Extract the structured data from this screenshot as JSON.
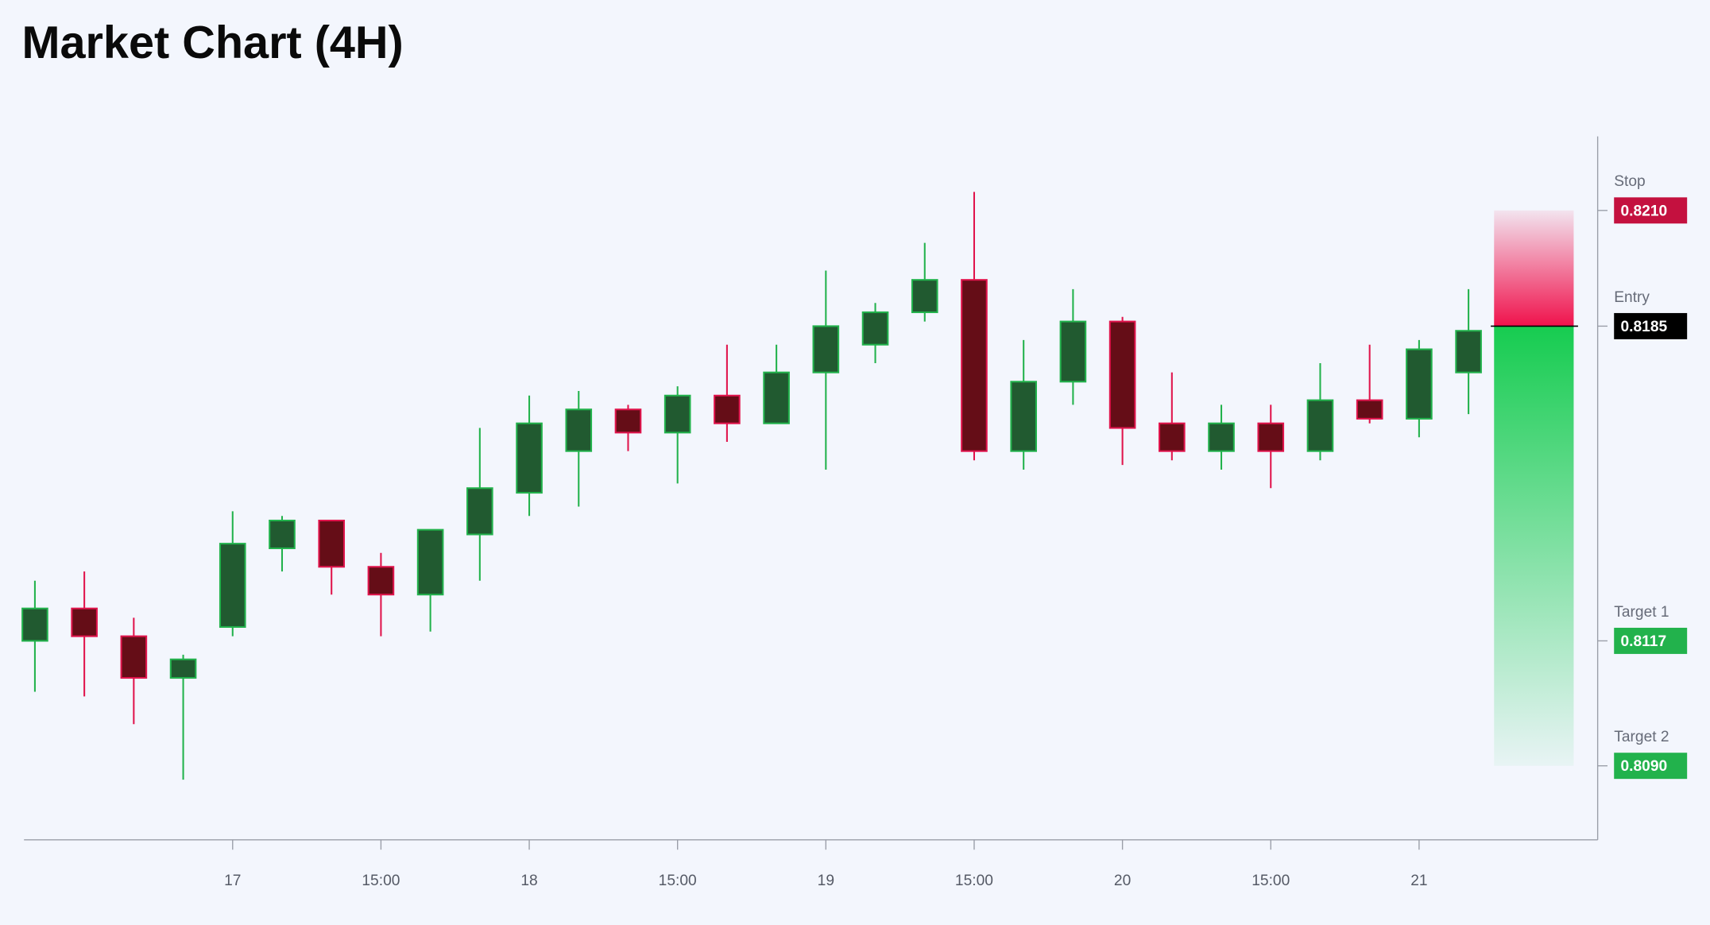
{
  "chart_data": {
    "type": "candlestick",
    "title": "Market Chart (4H)",
    "categories": [
      null,
      null,
      null,
      null,
      "17",
      null,
      null,
      "15:00",
      null,
      null,
      "18",
      null,
      null,
      "15:00",
      null,
      null,
      "19",
      null,
      null,
      "15:00",
      null,
      null,
      "20",
      null,
      null,
      "15:00",
      null,
      null,
      "21",
      null
    ],
    "open": [
      0.8117,
      0.8124,
      0.8118,
      0.8109,
      0.812,
      0.8137,
      0.8143,
      0.8133,
      0.8127,
      0.814,
      0.8149,
      0.8158,
      0.8167,
      0.8162,
      0.817,
      0.8164,
      0.8175,
      0.8181,
      0.8188,
      0.8195,
      0.8158,
      0.8173,
      0.8186,
      0.8164,
      0.8158,
      0.8164,
      0.8158,
      0.8169,
      0.8165,
      0.8175
    ],
    "high": [
      0.813,
      0.8132,
      0.8122,
      0.8114,
      0.8145,
      0.8144,
      0.8143,
      0.8136,
      0.8141,
      0.8163,
      0.817,
      0.8171,
      0.8168,
      0.8172,
      0.8181,
      0.8181,
      0.8197,
      0.819,
      0.8203,
      0.8214,
      0.8182,
      0.8193,
      0.8187,
      0.8175,
      0.8168,
      0.8168,
      0.8177,
      0.8181,
      0.8182,
      0.8193
    ],
    "low": [
      0.8106,
      0.8105,
      0.8099,
      0.8087,
      0.8118,
      0.8132,
      0.8127,
      0.8118,
      0.8119,
      0.813,
      0.8144,
      0.8146,
      0.8158,
      0.8151,
      0.816,
      0.8164,
      0.8154,
      0.8177,
      0.8186,
      0.8156,
      0.8154,
      0.8168,
      0.8155,
      0.8156,
      0.8154,
      0.815,
      0.8156,
      0.8164,
      0.8161,
      0.8166
    ],
    "close": [
      0.8124,
      0.8118,
      0.8109,
      0.8113,
      0.8138,
      0.8143,
      0.8133,
      0.8127,
      0.8141,
      0.815,
      0.8164,
      0.8167,
      0.8162,
      0.817,
      0.8164,
      0.8175,
      0.8185,
      0.8188,
      0.8195,
      0.8158,
      0.8173,
      0.8186,
      0.8163,
      0.8158,
      0.8164,
      0.8158,
      0.8169,
      0.8165,
      0.818,
      0.8184
    ],
    "up_color": "#22b24c",
    "down_color": "#e0144c",
    "ylim": [
      0.8074,
      0.8226
    ],
    "levels": [
      {
        "name": "Stop",
        "value": 0.821,
        "label": "0.8210",
        "color": "#c4113f"
      },
      {
        "name": "Entry",
        "value": 0.8185,
        "label": "0.8185",
        "color": "#000000"
      },
      {
        "name": "Target 1",
        "value": 0.8117,
        "label": "0.8117",
        "color": "#22b24c"
      },
      {
        "name": "Target 2",
        "value": 0.809,
        "label": "0.8090",
        "color": "#22b24c"
      }
    ]
  }
}
